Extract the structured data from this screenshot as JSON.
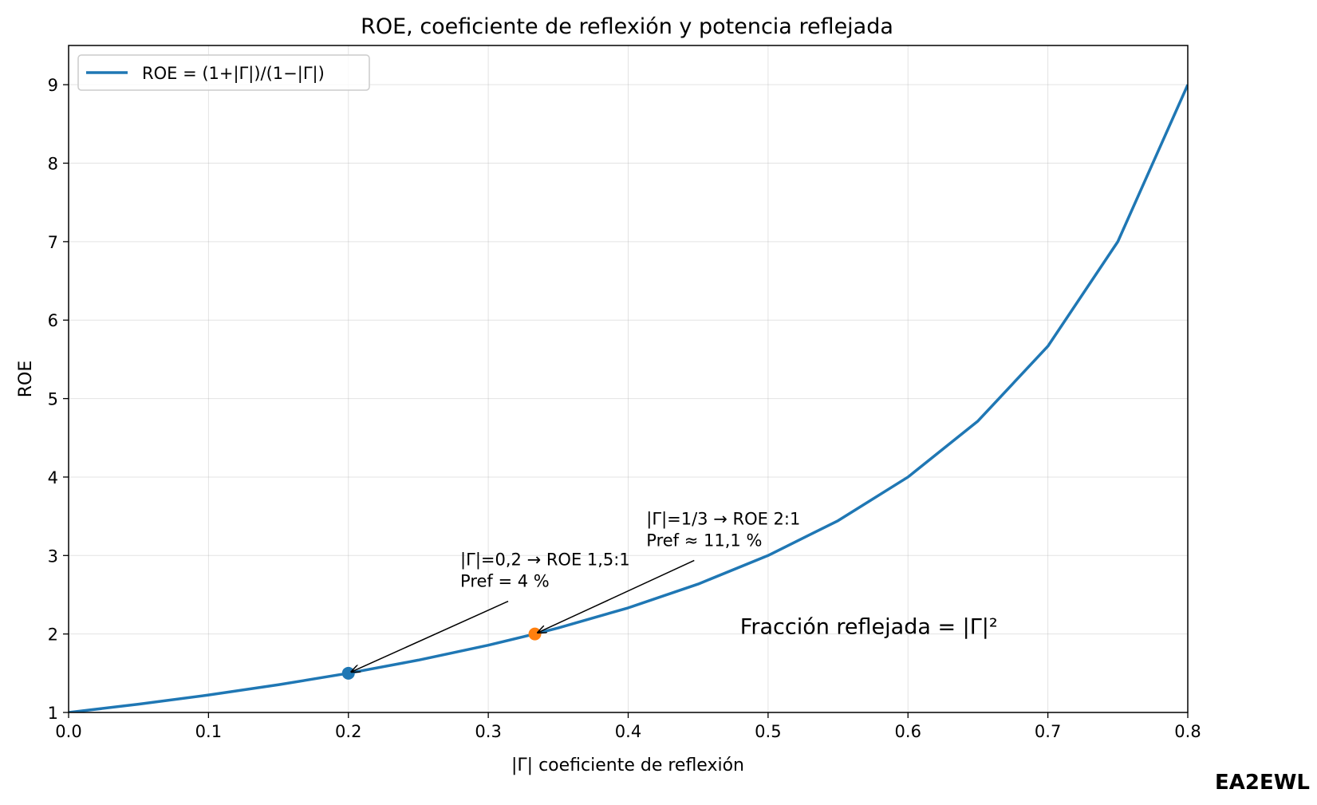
{
  "chart_data": {
    "type": "line",
    "title": "ROE, coeficiente de reflexión y potencia reflejada",
    "xlabel": "|Γ|  coeficiente de reflexión",
    "ylabel": "ROE",
    "xlim": [
      0.0,
      0.8
    ],
    "ylim": [
      1,
      9.5
    ],
    "xticks": [
      0.0,
      0.1,
      0.2,
      0.3,
      0.4,
      0.5,
      0.6,
      0.7,
      0.8
    ],
    "xtick_labels": [
      "0.0",
      "0.1",
      "0.2",
      "0.3",
      "0.4",
      "0.5",
      "0.6",
      "0.7",
      "0.8"
    ],
    "yticks": [
      1,
      2,
      3,
      4,
      5,
      6,
      7,
      8,
      9
    ],
    "ytick_labels": [
      "1",
      "2",
      "3",
      "4",
      "5",
      "6",
      "7",
      "8",
      "9"
    ],
    "grid": true,
    "legend_position": "top-left",
    "series": [
      {
        "name": "ROE = (1+|Γ|)/(1−|Γ|)",
        "color": "#1f77b4",
        "x": [
          0.0,
          0.05,
          0.1,
          0.15,
          0.2,
          0.25,
          0.3,
          0.333,
          0.35,
          0.4,
          0.45,
          0.5,
          0.55,
          0.6,
          0.65,
          0.7,
          0.75,
          0.8
        ],
        "y": [
          1.0,
          1.105,
          1.222,
          1.353,
          1.5,
          1.667,
          1.857,
          2.0,
          2.077,
          2.333,
          2.636,
          3.0,
          3.444,
          4.0,
          4.714,
          5.667,
          7.0,
          9.0
        ]
      }
    ],
    "points": [
      {
        "x": 0.2,
        "y": 1.5,
        "color": "#1f77b4"
      },
      {
        "x": 0.3333,
        "y": 2.0,
        "color": "#ff7f0e"
      }
    ],
    "annotations": [
      {
        "lines": [
          "|Γ|=0,2 → ROE 1,5:1",
          "Pref = 4 %"
        ],
        "text_x": 0.28,
        "text_y": 2.6,
        "arrow_to": [
          0.2,
          1.5
        ]
      },
      {
        "lines": [
          "|Γ|=1/3 → ROE 2:1",
          "Pref ≈ 11,1 %"
        ],
        "text_x": 0.413,
        "text_y": 3.12,
        "arrow_to": [
          0.3333,
          2.0
        ]
      }
    ],
    "note": {
      "text": "Fracción reflejada = |Γ|²",
      "x": 0.48,
      "y": 2.0
    }
  },
  "signature": "EA2EWL"
}
